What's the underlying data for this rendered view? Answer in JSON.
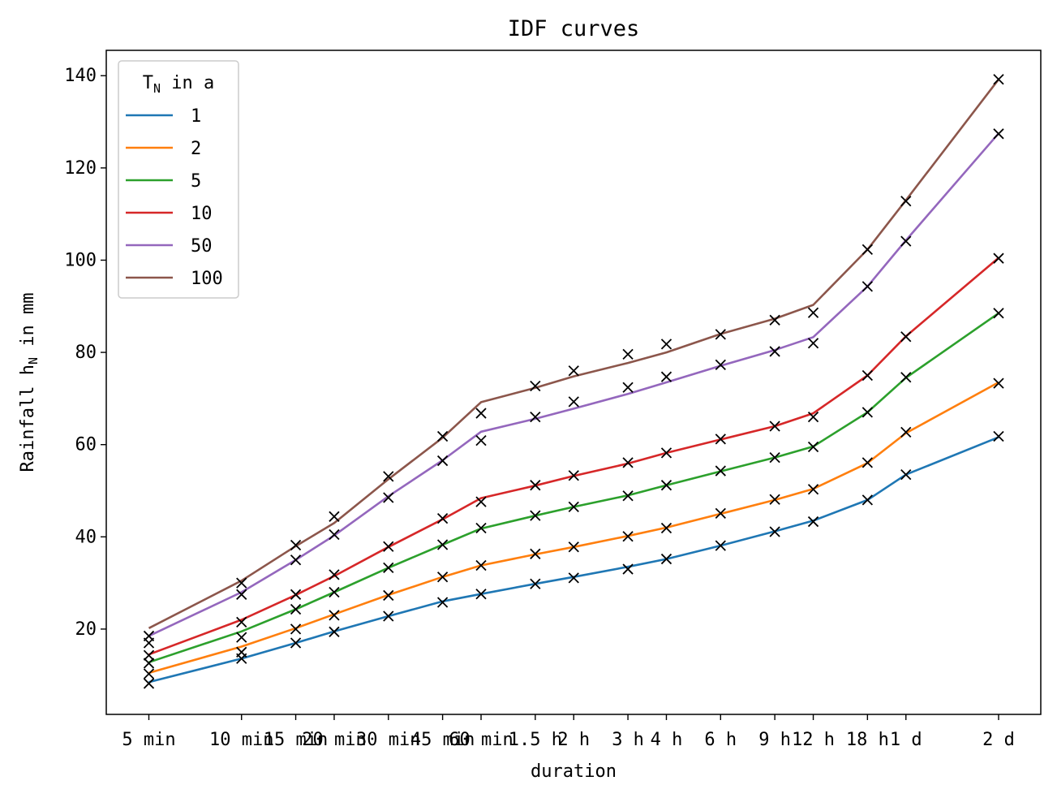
{
  "chart_data": {
    "type": "line",
    "title": "IDF curves",
    "xlabel": "duration",
    "ylabel": "Rainfall h",
    "ylabel_sub": "N",
    "ylabel_suffix": " in mm",
    "ylim": [
      1.5,
      145.5
    ],
    "yticks": [
      20,
      40,
      60,
      80,
      100,
      120,
      140
    ],
    "categories": [
      "5 min",
      "10 min",
      "15 min",
      "20 min",
      "30 min",
      "45 min",
      "60 min",
      "1.5 h",
      "2 h",
      "3 h",
      "4 h",
      "6 h",
      "9 h",
      "12 h",
      "18 h",
      "1 d",
      "2 d"
    ],
    "x_minutes": [
      5,
      10,
      15,
      20,
      30,
      45,
      60,
      90,
      120,
      180,
      240,
      360,
      540,
      720,
      1080,
      1440,
      2880
    ],
    "grid": false,
    "legend": {
      "title": "T",
      "title_sub": "N",
      "title_suffix": " in a",
      "placement": "upper-left"
    },
    "marker": "x",
    "marker_color": "#000000",
    "series": [
      {
        "name": "1",
        "color": "#1f77b4",
        "values": [
          8.5,
          13.6,
          17.0,
          19.5,
          22.8,
          26.0,
          27.6,
          29.8,
          31.3,
          33.5,
          35.2,
          38.1,
          41.2,
          43.5,
          48.0,
          53.5,
          61.6
        ],
        "markers": [
          8.2,
          13.6,
          17.0,
          19.4,
          22.8,
          25.8,
          27.6,
          29.8,
          31.1,
          33.0,
          35.2,
          38.1,
          41.1,
          43.3,
          48.0,
          53.5,
          61.8
        ]
      },
      {
        "name": "2",
        "color": "#ff7f0e",
        "values": [
          10.5,
          16.2,
          20.2,
          23.2,
          27.4,
          31.3,
          33.8,
          36.2,
          37.8,
          40.2,
          42.0,
          45.0,
          48.0,
          50.4,
          56.0,
          62.5,
          73.5
        ],
        "markers": [
          10.3,
          15.0,
          20.0,
          23.0,
          27.3,
          31.3,
          33.8,
          36.3,
          37.8,
          40.1,
          41.9,
          45.1,
          48.1,
          50.3,
          56.1,
          62.7,
          73.3
        ]
      },
      {
        "name": "5",
        "color": "#2ca02c",
        "values": [
          12.8,
          19.5,
          24.3,
          28.0,
          33.3,
          38.3,
          41.8,
          44.6,
          46.5,
          49.0,
          51.2,
          54.2,
          57.2,
          59.6,
          67.0,
          74.5,
          88.5
        ],
        "markers": [
          12.6,
          18.2,
          24.3,
          28.0,
          33.3,
          38.3,
          41.9,
          44.6,
          46.5,
          48.9,
          51.2,
          54.3,
          57.2,
          59.5,
          67.0,
          74.6,
          88.5
        ]
      },
      {
        "name": "10",
        "color": "#d62728",
        "values": [
          14.5,
          22.0,
          27.4,
          31.5,
          37.8,
          43.8,
          48.4,
          51.1,
          53.2,
          55.9,
          58.2,
          61.1,
          64.0,
          66.8,
          75.0,
          83.5,
          100.5
        ],
        "markers": [
          14.3,
          21.5,
          27.5,
          31.8,
          37.9,
          44.0,
          47.6,
          51.2,
          53.3,
          56.1,
          58.2,
          61.2,
          64.0,
          66.0,
          75.0,
          83.4,
          100.4
        ]
      },
      {
        "name": "50",
        "color": "#9467bd",
        "values": [
          18.5,
          28.0,
          35.0,
          40.3,
          48.8,
          56.6,
          62.8,
          65.6,
          67.8,
          71.0,
          73.5,
          77.1,
          80.5,
          83.3,
          94.3,
          104.3,
          127.5
        ],
        "markers": [
          17.0,
          27.5,
          35.0,
          40.5,
          48.5,
          56.5,
          60.9,
          66.0,
          69.3,
          72.4,
          74.7,
          77.3,
          80.2,
          82.0,
          94.3,
          104.1,
          127.4
        ]
      },
      {
        "name": "100",
        "color": "#8c564b",
        "values": [
          20.2,
          30.5,
          38.0,
          43.0,
          52.5,
          61.5,
          69.2,
          72.3,
          74.8,
          77.7,
          80.0,
          84.0,
          87.3,
          90.3,
          102.3,
          113.0,
          139.2
        ],
        "markers": [
          18.5,
          30.0,
          38.2,
          44.4,
          53.1,
          61.8,
          66.8,
          72.7,
          76.0,
          79.6,
          81.8,
          83.9,
          87.0,
          88.6,
          102.3,
          112.8,
          139.2
        ]
      }
    ]
  }
}
